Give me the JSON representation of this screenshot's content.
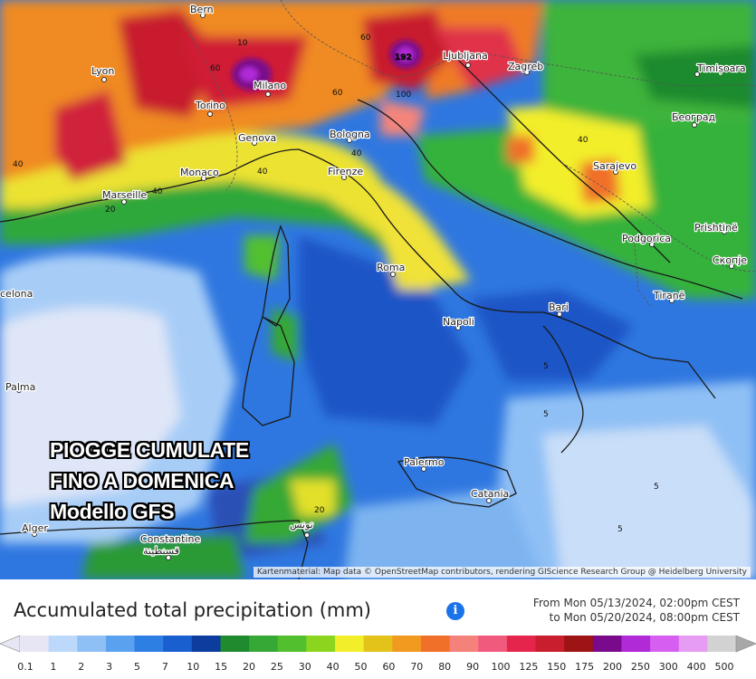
{
  "overlay": {
    "line1": "PIOGGE CUMULATE",
    "line2": "FINO A DOMENICA",
    "line3": "Modello GFS"
  },
  "attribution": "Kartenmaterial: Map data © OpenStreetMap contributors, rendering GIScience Research Group @ Heidelberg University",
  "legend": {
    "title": "Accumulated total precipitation (mm)",
    "info_icon": "info-icon",
    "date_from": "From Mon 05/13/2024, 02:00pm CEST",
    "date_to": "to Mon 05/20/2024, 08:00pm CEST",
    "ticks": [
      "0.1",
      "1",
      "2",
      "3",
      "5",
      "7",
      "10",
      "15",
      "20",
      "25",
      "30",
      "40",
      "50",
      "60",
      "70",
      "80",
      "90",
      "100",
      "125",
      "150",
      "175",
      "200",
      "250",
      "300",
      "400",
      "500"
    ],
    "colors": [
      "#e6e6f5",
      "#bcd9fb",
      "#8fc0f5",
      "#5aa2ef",
      "#2e7fe3",
      "#1a5fcf",
      "#0b3c9e",
      "#1f8a2e",
      "#35a835",
      "#52c02e",
      "#8bd51f",
      "#f2ee2a",
      "#e3c21a",
      "#f29a1f",
      "#f0702a",
      "#f4817a",
      "#f05a7d",
      "#e6254c",
      "#c81e2d",
      "#9e1313",
      "#7a0a8c",
      "#b12ad8",
      "#d65ef0",
      "#e79cf3",
      "#d2d2d2",
      "#a8a8a8"
    ]
  },
  "places": {
    "bern": "Bern",
    "lyon": "Lyon",
    "torino": "Torino",
    "milano": "Milano",
    "genova": "Genova",
    "monaco": "Monaco",
    "marseille": "Marseille",
    "bologna": "Bologna",
    "firenze": "Firenze",
    "roma": "Roma",
    "napoli": "Napoli",
    "bari": "Bari",
    "palermo": "Palermo",
    "catania": "Catania",
    "ljubljana": "Ljubljana",
    "zagreb": "Zagreb",
    "timisoara": "Timișoara",
    "beograd": "Београд",
    "sarajevo": "Sarajevo",
    "podgorica": "Podgorica",
    "prishtine": "Prishtinë",
    "skopje": "Скопје",
    "tirane": "Tiranë",
    "palma": "Palma",
    "alger": "Alger",
    "constantine": "Constantine",
    "constantine_ar": "قسنطينة",
    "tunis_ar": "تونس",
    "celona": "celona"
  },
  "contours": {
    "c192": "192",
    "c40a": "40",
    "c40b": "40",
    "c40c": "40",
    "c40d": "40",
    "c40e": "40",
    "c20a": "20",
    "c20b": "20",
    "c60a": "60",
    "c60b": "60",
    "c60c": "60",
    "c100": "100",
    "c10": "10",
    "c5a": "5",
    "c5b": "5",
    "c5c": "5",
    "c5d": "5"
  }
}
